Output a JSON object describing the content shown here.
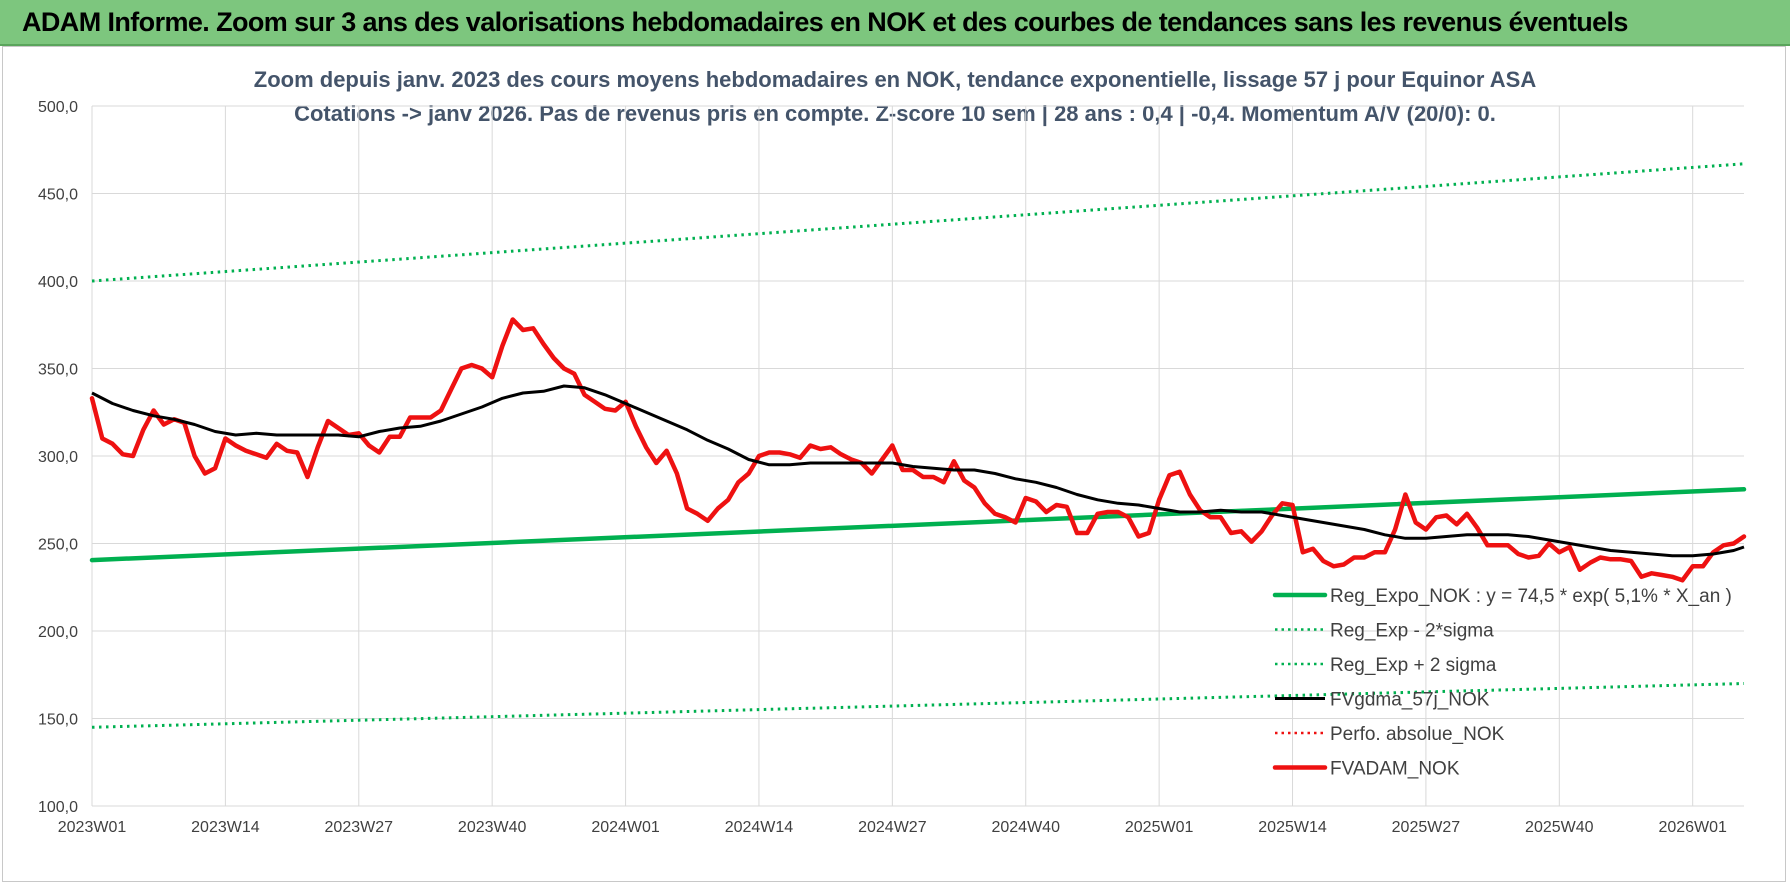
{
  "banner": {
    "title": "ADAM Informe. Zoom sur 3 ans des valorisations hebdomadaires en NOK et des courbes de tendances sans les revenus éventuels"
  },
  "colors": {
    "banner_bg": "#7dc67e",
    "trend_green": "#00b050",
    "fv_red": "#ee1111",
    "smooth_black": "#000000",
    "perf_red_dotted": "#ee1111",
    "grid": "#d9d9d9",
    "subtitle": "#44546a"
  },
  "chart_data": {
    "type": "line",
    "title_lines": [
      "Zoom depuis janv. 2023 des cours moyens hebdomadaires en NOK, tendance exponentielle, lissage 57 j pour Equinor ASA",
      "Cotations -> janv 2026. Pas de revenus pris en compte. Z-score 10 sem | 28 ans : 0,4 | -0,4. Momentum A/V (20/0): 0."
    ],
    "ylim": [
      100,
      500
    ],
    "yticks": [
      {
        "value": 100,
        "label": "100,0"
      },
      {
        "value": 150,
        "label": "150,0"
      },
      {
        "value": 200,
        "label": "200,0"
      },
      {
        "value": 250,
        "label": "250,0"
      },
      {
        "value": 300,
        "label": "300,0"
      },
      {
        "value": 350,
        "label": "350,0"
      },
      {
        "value": 400,
        "label": "400,0"
      },
      {
        "value": 450,
        "label": "450,0"
      },
      {
        "value": 500,
        "label": "500,0"
      }
    ],
    "x_count": 162,
    "xticks": [
      {
        "index": 0,
        "label": "2023W01"
      },
      {
        "index": 13,
        "label": "2023W14"
      },
      {
        "index": 26,
        "label": "2023W27"
      },
      {
        "index": 39,
        "label": "2023W40"
      },
      {
        "index": 52,
        "label": "2024W01"
      },
      {
        "index": 65,
        "label": "2024W14"
      },
      {
        "index": 78,
        "label": "2024W27"
      },
      {
        "index": 91,
        "label": "2024W40"
      },
      {
        "index": 104,
        "label": "2025W01"
      },
      {
        "index": 117,
        "label": "2025W14"
      },
      {
        "index": 130,
        "label": "2025W27"
      },
      {
        "index": 143,
        "label": "2025W40"
      },
      {
        "index": 156,
        "label": "2026W01"
      }
    ],
    "series": [
      {
        "name": "Reg_Expo_NOK : y = 74,5 * exp( 5,1% *  X_an )",
        "style": "solid-thick",
        "color": "#00b050",
        "points": [
          [
            0,
            240.5
          ],
          [
            161,
            281
          ]
        ]
      },
      {
        "name": "Reg_Exp - 2*sigma",
        "style": "dotted",
        "color": "#00b050",
        "points": [
          [
            0,
            145
          ],
          [
            161,
            170
          ]
        ]
      },
      {
        "name": "Reg_Exp + 2 sigma",
        "style": "dotted",
        "color": "#00b050",
        "points": [
          [
            0,
            400
          ],
          [
            161,
            467
          ]
        ]
      },
      {
        "name": "FVgdma_57j_NOK",
        "style": "solid",
        "color": "#000000",
        "points": [
          [
            0,
            336
          ],
          [
            2,
            330
          ],
          [
            4,
            326
          ],
          [
            6,
            323
          ],
          [
            8,
            321
          ],
          [
            10,
            318
          ],
          [
            12,
            314
          ],
          [
            14,
            312
          ],
          [
            16,
            313
          ],
          [
            18,
            312
          ],
          [
            20,
            312
          ],
          [
            22,
            312
          ],
          [
            24,
            312
          ],
          [
            26,
            311
          ],
          [
            28,
            314
          ],
          [
            30,
            316
          ],
          [
            32,
            317
          ],
          [
            34,
            320
          ],
          [
            36,
            324
          ],
          [
            38,
            328
          ],
          [
            40,
            333
          ],
          [
            42,
            336
          ],
          [
            44,
            337
          ],
          [
            46,
            340
          ],
          [
            48,
            339
          ],
          [
            50,
            335
          ],
          [
            52,
            330
          ],
          [
            54,
            325
          ],
          [
            56,
            320
          ],
          [
            58,
            315
          ],
          [
            60,
            309
          ],
          [
            62,
            304
          ],
          [
            64,
            298
          ],
          [
            66,
            295
          ],
          [
            68,
            295
          ],
          [
            70,
            296
          ],
          [
            72,
            296
          ],
          [
            74,
            296
          ],
          [
            76,
            296
          ],
          [
            78,
            296
          ],
          [
            80,
            294
          ],
          [
            82,
            293
          ],
          [
            84,
            292
          ],
          [
            86,
            292
          ],
          [
            88,
            290
          ],
          [
            90,
            287
          ],
          [
            92,
            285
          ],
          [
            94,
            282
          ],
          [
            96,
            278
          ],
          [
            98,
            275
          ],
          [
            100,
            273
          ],
          [
            102,
            272
          ],
          [
            104,
            270
          ],
          [
            106,
            268
          ],
          [
            108,
            268
          ],
          [
            110,
            269
          ],
          [
            112,
            268
          ],
          [
            114,
            268
          ],
          [
            116,
            266
          ],
          [
            118,
            264
          ],
          [
            120,
            262
          ],
          [
            122,
            260
          ],
          [
            124,
            258
          ],
          [
            126,
            255
          ],
          [
            128,
            253
          ],
          [
            130,
            253
          ],
          [
            132,
            254
          ],
          [
            134,
            255
          ],
          [
            136,
            255
          ],
          [
            138,
            255
          ],
          [
            140,
            254
          ],
          [
            142,
            252
          ],
          [
            144,
            250
          ],
          [
            146,
            248
          ],
          [
            148,
            246
          ],
          [
            150,
            245
          ],
          [
            152,
            244
          ],
          [
            154,
            243
          ],
          [
            156,
            243
          ],
          [
            158,
            244
          ],
          [
            160,
            246
          ],
          [
            161,
            248
          ]
        ]
      },
      {
        "name": "Perfo. absolue_NOK",
        "style": "dotted",
        "color": "#ee1111",
        "points": []
      },
      {
        "name": "FVADAM_NOK",
        "style": "solid-thick",
        "color": "#ee1111",
        "points": [
          [
            0,
            333
          ],
          [
            1,
            310
          ],
          [
            2,
            307
          ],
          [
            3,
            301
          ],
          [
            4,
            300
          ],
          [
            5,
            315
          ],
          [
            6,
            326
          ],
          [
            7,
            318
          ],
          [
            8,
            321
          ],
          [
            9,
            319
          ],
          [
            10,
            300
          ],
          [
            11,
            290
          ],
          [
            12,
            293
          ],
          [
            13,
            310
          ],
          [
            14,
            306
          ],
          [
            15,
            303
          ],
          [
            16,
            301
          ],
          [
            17,
            299
          ],
          [
            18,
            307
          ],
          [
            19,
            303
          ],
          [
            20,
            302
          ],
          [
            21,
            288
          ],
          [
            22,
            305
          ],
          [
            23,
            320
          ],
          [
            24,
            316
          ],
          [
            25,
            312
          ],
          [
            26,
            313
          ],
          [
            27,
            306
          ],
          [
            28,
            302
          ],
          [
            29,
            311
          ],
          [
            30,
            311
          ],
          [
            31,
            322
          ],
          [
            32,
            322
          ],
          [
            33,
            322
          ],
          [
            34,
            326
          ],
          [
            35,
            338
          ],
          [
            36,
            350
          ],
          [
            37,
            352
          ],
          [
            38,
            350
          ],
          [
            39,
            345
          ],
          [
            40,
            363
          ],
          [
            41,
            378
          ],
          [
            42,
            372
          ],
          [
            43,
            373
          ],
          [
            44,
            364
          ],
          [
            45,
            356
          ],
          [
            46,
            350
          ],
          [
            47,
            347
          ],
          [
            48,
            335
          ],
          [
            49,
            331
          ],
          [
            50,
            327
          ],
          [
            51,
            326
          ],
          [
            52,
            331
          ],
          [
            53,
            317
          ],
          [
            54,
            305
          ],
          [
            55,
            296
          ],
          [
            56,
            303
          ],
          [
            57,
            290
          ],
          [
            58,
            270
          ],
          [
            59,
            267
          ],
          [
            60,
            263
          ],
          [
            61,
            270
          ],
          [
            62,
            275
          ],
          [
            63,
            285
          ],
          [
            64,
            290
          ],
          [
            65,
            300
          ],
          [
            66,
            302
          ],
          [
            67,
            302
          ],
          [
            68,
            301
          ],
          [
            69,
            299
          ],
          [
            70,
            306
          ],
          [
            71,
            304
          ],
          [
            72,
            305
          ],
          [
            73,
            301
          ],
          [
            74,
            298
          ],
          [
            75,
            296
          ],
          [
            76,
            290
          ],
          [
            77,
            298
          ],
          [
            78,
            306
          ],
          [
            79,
            292
          ],
          [
            80,
            292
          ],
          [
            81,
            288
          ],
          [
            82,
            288
          ],
          [
            83,
            285
          ],
          [
            84,
            297
          ],
          [
            85,
            286
          ],
          [
            86,
            282
          ],
          [
            87,
            273
          ],
          [
            88,
            267
          ],
          [
            89,
            265
          ],
          [
            90,
            262
          ],
          [
            91,
            276
          ],
          [
            92,
            274
          ],
          [
            93,
            268
          ],
          [
            94,
            272
          ],
          [
            95,
            271
          ],
          [
            96,
            256
          ],
          [
            97,
            256
          ],
          [
            98,
            267
          ],
          [
            99,
            268
          ],
          [
            100,
            268
          ],
          [
            101,
            265
          ],
          [
            102,
            254
          ],
          [
            103,
            256
          ],
          [
            104,
            275
          ],
          [
            105,
            289
          ],
          [
            106,
            291
          ],
          [
            107,
            278
          ],
          [
            108,
            269
          ],
          [
            109,
            265
          ],
          [
            110,
            265
          ],
          [
            111,
            256
          ],
          [
            112,
            257
          ],
          [
            113,
            251
          ],
          [
            114,
            257
          ],
          [
            115,
            266
          ],
          [
            116,
            273
          ],
          [
            117,
            272
          ],
          [
            118,
            245
          ],
          [
            119,
            247
          ],
          [
            120,
            240
          ],
          [
            121,
            237
          ],
          [
            122,
            238
          ],
          [
            123,
            242
          ],
          [
            124,
            242
          ],
          [
            125,
            245
          ],
          [
            126,
            245
          ],
          [
            127,
            258
          ],
          [
            128,
            278
          ],
          [
            129,
            262
          ],
          [
            130,
            258
          ],
          [
            131,
            265
          ],
          [
            132,
            266
          ],
          [
            133,
            261
          ],
          [
            134,
            267
          ],
          [
            135,
            259
          ],
          [
            136,
            249
          ],
          [
            137,
            249
          ],
          [
            138,
            249
          ],
          [
            139,
            244
          ],
          [
            140,
            242
          ],
          [
            141,
            243
          ],
          [
            142,
            250
          ],
          [
            143,
            245
          ],
          [
            144,
            248
          ],
          [
            145,
            235
          ],
          [
            146,
            239
          ],
          [
            147,
            242
          ],
          [
            148,
            241
          ],
          [
            149,
            241
          ],
          [
            150,
            240
          ],
          [
            151,
            231
          ],
          [
            152,
            233
          ],
          [
            153,
            232
          ],
          [
            154,
            231
          ],
          [
            155,
            229
          ],
          [
            156,
            237
          ],
          [
            157,
            237
          ],
          [
            158,
            245
          ],
          [
            159,
            249
          ],
          [
            160,
            250
          ],
          [
            161,
            254
          ]
        ]
      }
    ],
    "legend_position": "bottom-right"
  }
}
